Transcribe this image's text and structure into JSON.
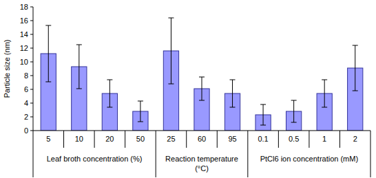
{
  "chart_data": {
    "type": "bar",
    "y_label": "Particle size (nm)",
    "categories": [
      "5",
      "10",
      "20",
      "50",
      "25",
      "60",
      "95",
      "0.1",
      "0.5",
      "1",
      "2"
    ],
    "values": [
      11.2,
      9.3,
      5.4,
      2.8,
      11.6,
      6.1,
      5.4,
      2.3,
      2.8,
      5.4,
      9.1
    ],
    "errors": [
      4.1,
      3.2,
      2.0,
      1.5,
      4.8,
      1.7,
      2.0,
      1.5,
      1.6,
      2.0,
      3.3
    ],
    "groups": [
      {
        "label": "Leaf broth concentration (%)",
        "size": 4
      },
      {
        "label": "Reaction temperature (°C)",
        "size": 3
      },
      {
        "label": "PtCl6 ion concentration (mM)",
        "size": 4
      }
    ],
    "color": "#9999ff",
    "ylim": [
      0,
      18
    ],
    "yticks": [
      0,
      2,
      4,
      6,
      8,
      10,
      12,
      14,
      16,
      18
    ],
    "grid": false
  }
}
